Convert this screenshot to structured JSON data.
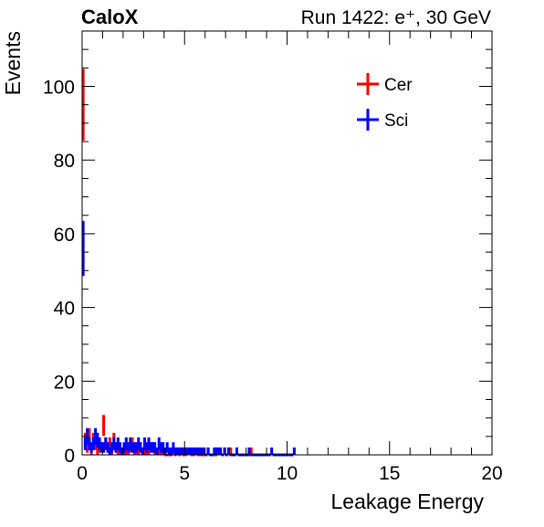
{
  "chart_data": {
    "type": "histogram",
    "experiment": "CaloX",
    "run_label": "Run 1422: e⁺, 30 GeV",
    "xlabel": "Leakage Energy",
    "ylabel": "Events",
    "xlim": [
      0,
      20
    ],
    "ylim": [
      0,
      115
    ],
    "xticks": [
      0,
      5,
      10,
      15,
      20
    ],
    "yticks": [
      0,
      20,
      40,
      60,
      80,
      100
    ],
    "grid": false,
    "legend_position": "top-right",
    "bin_width": 0.1,
    "series": [
      {
        "name": "Cer",
        "color": "#ff0000",
        "values": [
          95,
          4,
          2,
          5,
          1,
          4,
          3,
          1,
          2,
          2,
          8,
          3,
          2,
          3,
          1,
          4,
          2,
          1,
          1,
          1,
          1,
          1,
          1,
          2,
          3,
          1,
          1,
          1,
          2,
          1,
          1,
          1,
          1,
          2,
          2,
          1,
          1,
          1,
          1,
          1,
          0,
          0,
          0,
          0,
          1,
          0,
          1,
          0,
          1,
          0,
          0,
          1,
          1,
          0,
          0,
          1,
          0,
          0,
          0,
          0,
          0,
          1,
          0,
          0,
          0,
          0,
          1,
          1,
          0,
          1,
          0,
          1,
          1,
          0,
          0,
          1,
          0,
          0,
          0,
          0,
          0,
          0,
          1
        ]
      },
      {
        "name": "Sci",
        "color": "#0000ff",
        "values": [
          56,
          3,
          5,
          3,
          2,
          3,
          5,
          4,
          3,
          2,
          2,
          3,
          2,
          1,
          2,
          3,
          2,
          3,
          2,
          1,
          2,
          3,
          2,
          3,
          2,
          2,
          2,
          3,
          2,
          1,
          3,
          2,
          3,
          2,
          2,
          2,
          1,
          3,
          2,
          2,
          1,
          2,
          1,
          1,
          2,
          1,
          1,
          1,
          1,
          1,
          1,
          1,
          1,
          1,
          1,
          1,
          1,
          1,
          1,
          1,
          0,
          1,
          0,
          0,
          1,
          1,
          1,
          1,
          0,
          1,
          0,
          1,
          0,
          0,
          0,
          1,
          0,
          0,
          0,
          0,
          0,
          1,
          0,
          0,
          0,
          0,
          0,
          0,
          0,
          0,
          0,
          0,
          1,
          0,
          0,
          0,
          0,
          0,
          0,
          0,
          0,
          0,
          0,
          1
        ]
      }
    ]
  }
}
